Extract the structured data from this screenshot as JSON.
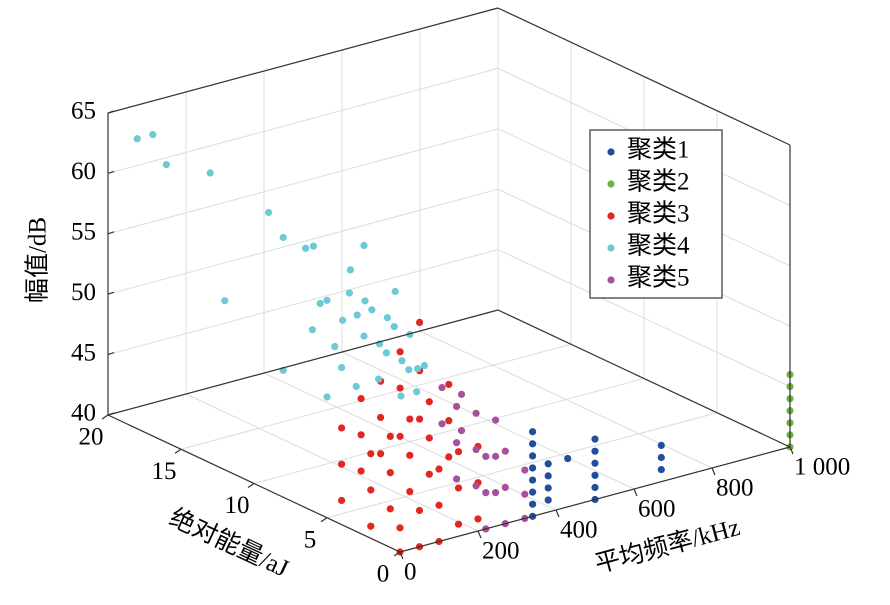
{
  "chart_data": {
    "type": "scatter3d",
    "xlabel": "平均频率/kHz",
    "ylabel": "绝对能量/aJ",
    "zlabel": "幅值/dB",
    "xlim": [
      0,
      1000
    ],
    "ylim": [
      0,
      20
    ],
    "zlim": [
      40,
      65
    ],
    "xticks": [
      0,
      200,
      400,
      600,
      800,
      {
        "value": 1000,
        "label": "1 000"
      }
    ],
    "yticks": [
      0,
      5,
      10,
      15,
      20
    ],
    "zticks": [
      40,
      45,
      50,
      55,
      60,
      65
    ],
    "grid": true,
    "legend": "upper right",
    "series": [
      {
        "name": "聚类1",
        "color": "#1f4e9c",
        "x": [
          670,
          670,
          670,
          500,
          500,
          500,
          500,
          500,
          500,
          430,
          380,
          380,
          380,
          380,
          340,
          340,
          340,
          340,
          340,
          340,
          340,
          340
        ],
        "y": [
          0,
          0,
          0,
          0,
          0,
          0,
          0,
          0,
          0,
          0,
          0,
          0,
          0,
          0,
          0,
          0,
          0,
          0,
          0,
          0,
          0,
          0
        ],
        "z": [
          41,
          42,
          43,
          40,
          41,
          42,
          43,
          44,
          45,
          44,
          41,
          42,
          43,
          44,
          40,
          41,
          42,
          43,
          44,
          45,
          46,
          47
        ]
      },
      {
        "name": "聚类2",
        "color": "#6db33f",
        "x": [
          1000,
          1000,
          1000,
          1000,
          1000,
          1000,
          1000
        ],
        "y": [
          0,
          0,
          0,
          0,
          0,
          0,
          0
        ],
        "z": [
          40,
          41,
          42,
          43,
          44,
          45,
          46
        ]
      },
      {
        "name": "聚类3",
        "color": "#e3261f",
        "x": [
          0,
          0,
          0,
          0,
          0,
          0,
          0,
          0,
          50,
          50,
          50,
          50,
          50,
          50,
          50,
          50,
          100,
          100,
          100,
          100,
          100,
          100,
          100,
          100,
          100,
          150,
          150,
          150,
          150,
          150,
          150,
          150,
          150,
          150,
          200,
          200,
          200,
          200,
          200,
          200,
          200,
          200,
          200
        ],
        "y": [
          0,
          0,
          2,
          2,
          2,
          4,
          4,
          4,
          0,
          0,
          2,
          2,
          2,
          4,
          4,
          4,
          0,
          0,
          0,
          2,
          2,
          2,
          4,
          4,
          4,
          0,
          0,
          0,
          2,
          2,
          2,
          4,
          4,
          4,
          0,
          0,
          0,
          2,
          2,
          2,
          4,
          4,
          4
        ],
        "z": [
          40,
          42,
          41,
          44,
          47,
          42,
          45,
          48,
          40,
          43,
          42,
          45,
          48,
          44,
          47,
          50,
          40,
          43,
          46,
          43,
          46,
          49,
          45,
          48,
          51,
          41,
          44,
          47,
          44,
          47,
          50,
          46,
          50,
          53,
          41,
          44,
          47,
          45,
          48,
          51,
          47,
          51,
          55
        ]
      },
      {
        "name": "聚类4",
        "color": "#6cc9d6",
        "x": [
          40,
          0,
          0,
          0,
          0,
          0,
          20,
          40,
          20,
          0,
          0,
          0,
          0,
          20,
          40,
          0,
          20,
          40,
          60,
          0,
          20,
          40,
          60,
          80,
          20,
          40,
          60,
          80,
          100,
          40,
          60,
          80,
          100,
          100,
          120,
          0,
          20,
          60
        ],
        "y": [
          18,
          18,
          16,
          13,
          9,
          8,
          7,
          7,
          3,
          12,
          8,
          5,
          6,
          6,
          5,
          5,
          4,
          4,
          4,
          4,
          3,
          3,
          3,
          3,
          2,
          2,
          2,
          2,
          2,
          1,
          1,
          1,
          1,
          3,
          2,
          3,
          5,
          5
        ],
        "z": [
          64,
          64,
          63,
          64,
          63,
          61.5,
          61,
          61,
          63.5,
          54,
          50.5,
          50,
          55,
          57,
          56,
          58,
          59,
          57,
          58,
          53,
          56,
          58,
          55,
          57,
          53,
          55,
          57,
          54,
          56,
          52,
          54,
          52,
          54,
          59,
          53,
          52,
          54,
          60
        ]
      },
      {
        "name": "聚类5",
        "color": "#a7519c",
        "x": [
          220,
          220,
          220,
          220,
          220,
          220,
          220,
          220,
          270,
          270,
          270,
          270,
          270,
          270,
          270,
          270,
          320,
          320,
          320,
          320,
          320,
          320
        ],
        "y": [
          0,
          0,
          0,
          2,
          2,
          2,
          3,
          3,
          0,
          0,
          0,
          2,
          2,
          2,
          3,
          3,
          0,
          0,
          0,
          2,
          2,
          2
        ],
        "z": [
          40,
          43,
          46,
          43,
          46,
          49,
          47,
          50,
          40,
          43,
          46,
          42,
          45,
          48,
          46,
          49,
          40,
          42,
          44,
          41,
          44,
          47
        ]
      }
    ]
  }
}
